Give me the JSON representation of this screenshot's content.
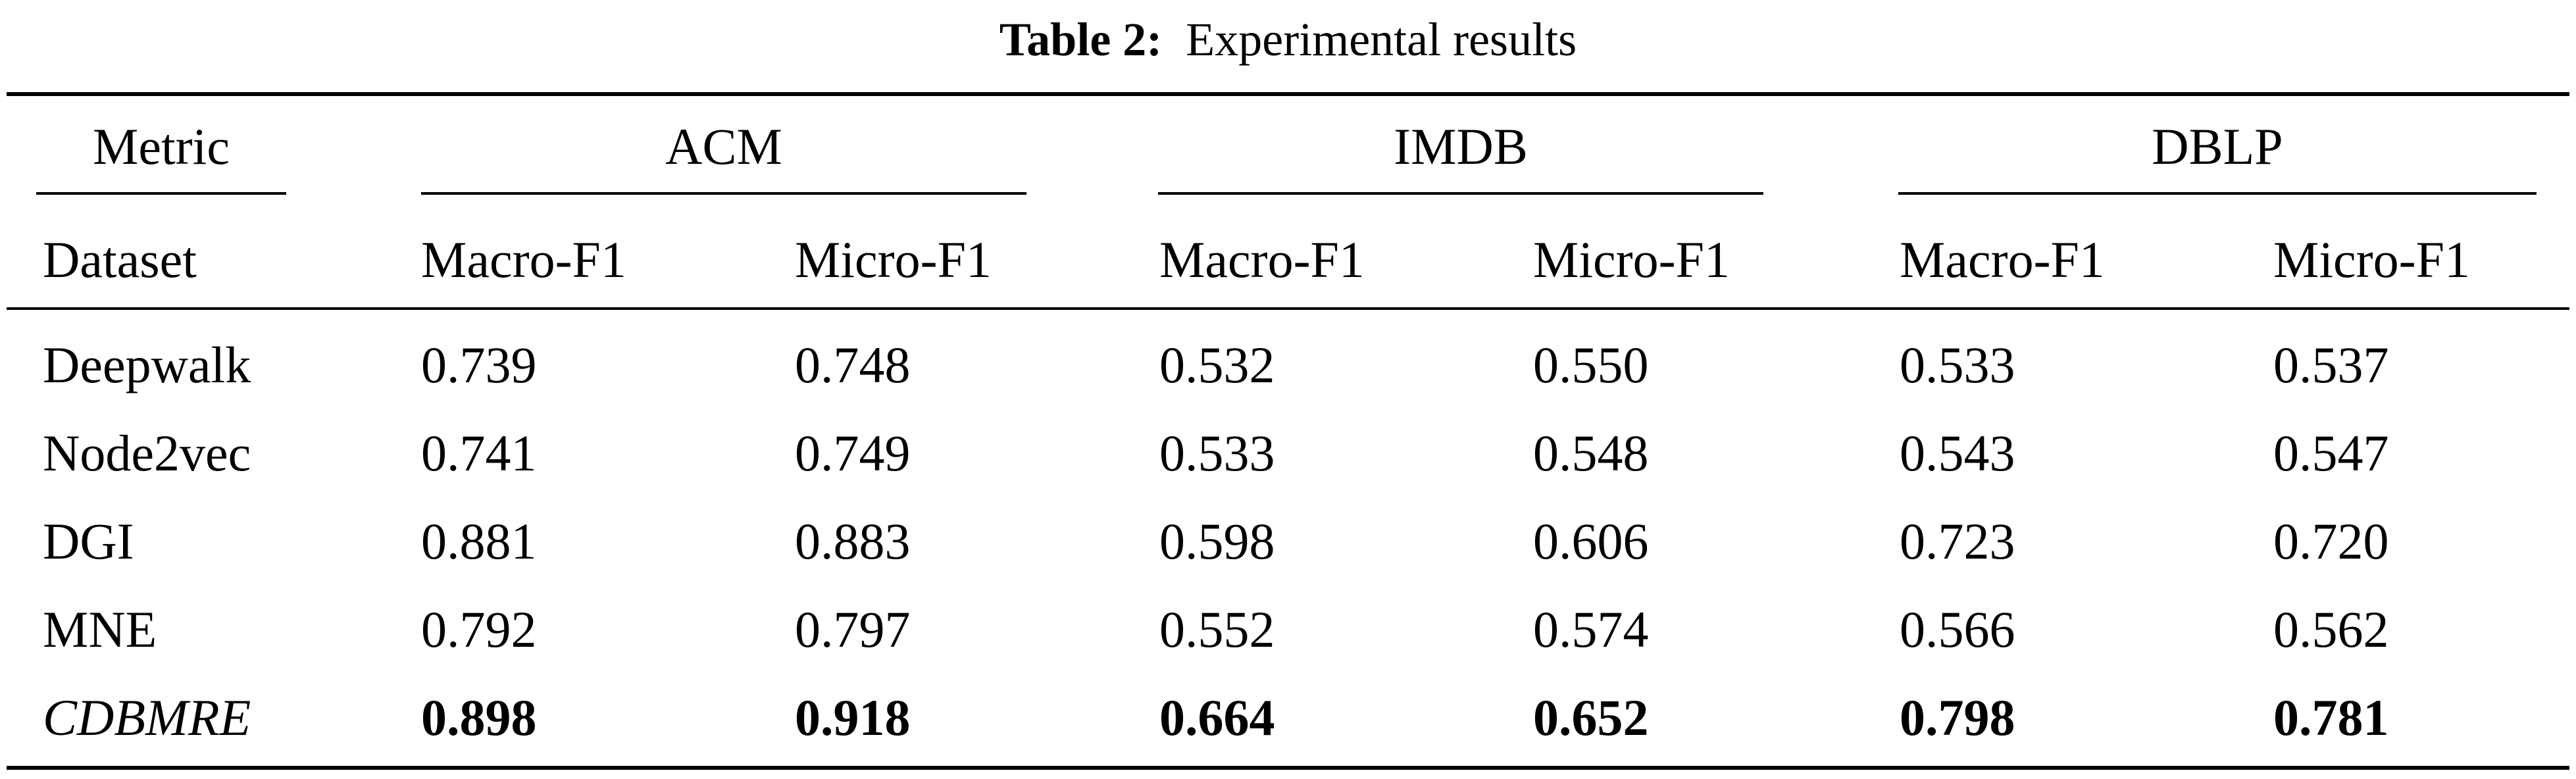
{
  "caption": {
    "label": "Table 2:",
    "text": "Experimental results"
  },
  "header": {
    "metric_label": "Metric",
    "dataset_label": "Dataset",
    "groups": [
      "ACM",
      "IMDB",
      "DBLP"
    ],
    "sub_columns": [
      "Macro-F1",
      "Micro-F1",
      "Macro-F1",
      "Micro-F1",
      "Macro-F1",
      "Micro-F1"
    ]
  },
  "rows": [
    {
      "name": "Deepwalk",
      "values": [
        "0.739",
        "0.748",
        "0.532",
        "0.550",
        "0.533",
        "0.537"
      ]
    },
    {
      "name": "Node2vec",
      "values": [
        "0.741",
        "0.749",
        "0.533",
        "0.548",
        "0.543",
        "0.547"
      ]
    },
    {
      "name": "DGI",
      "values": [
        "0.881",
        "0.883",
        "0.598",
        "0.606",
        "0.723",
        "0.720"
      ]
    },
    {
      "name": "MNE",
      "values": [
        "0.792",
        "0.797",
        "0.552",
        "0.574",
        "0.566",
        "0.562"
      ]
    },
    {
      "name": "CDBMRE",
      "values": [
        "0.898",
        "0.918",
        "0.664",
        "0.652",
        "0.798",
        "0.781"
      ],
      "emphasis": true
    }
  ]
}
